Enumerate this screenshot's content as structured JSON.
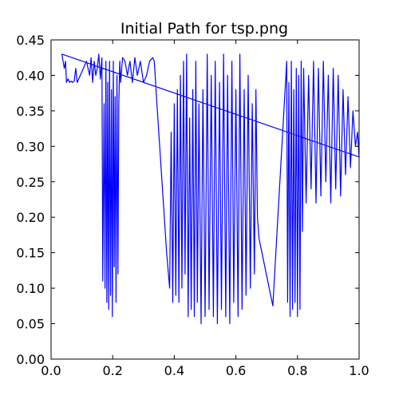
{
  "chart_data": {
    "type": "line",
    "title": "Initial Path for tsp.png",
    "xlabel": "",
    "ylabel": "",
    "xlim": [
      0.0,
      1.0
    ],
    "ylim": [
      0.0,
      0.45
    ],
    "grid": false,
    "legend": "none",
    "line_color": "#0000ff",
    "x_ticks": [
      {
        "value": 0.0,
        "label": "0.0"
      },
      {
        "value": 0.2,
        "label": "0.2"
      },
      {
        "value": 0.4,
        "label": "0.4"
      },
      {
        "value": 0.6,
        "label": "0.6"
      },
      {
        "value": 0.8,
        "label": "0.8"
      },
      {
        "value": 1.0,
        "label": "1.0"
      }
    ],
    "y_ticks": [
      {
        "value": 0.0,
        "label": "0.00"
      },
      {
        "value": 0.05,
        "label": "0.05"
      },
      {
        "value": 0.1,
        "label": "0.10"
      },
      {
        "value": 0.15,
        "label": "0.15"
      },
      {
        "value": 0.2,
        "label": "0.20"
      },
      {
        "value": 0.25,
        "label": "0.25"
      },
      {
        "value": 0.3,
        "label": "0.30"
      },
      {
        "value": 0.35,
        "label": "0.35"
      },
      {
        "value": 0.4,
        "label": "0.40"
      },
      {
        "value": 0.45,
        "label": "0.45"
      }
    ],
    "series": [
      {
        "x": [
          0.035,
          0.043,
          0.047,
          0.05,
          0.055,
          0.06,
          0.065,
          0.07,
          0.075,
          0.08,
          0.085,
          0.09,
          0.095,
          0.1,
          0.105,
          0.11,
          0.115,
          0.12,
          0.125,
          0.13,
          0.135,
          0.14,
          0.145,
          0.15,
          0.155,
          0.16,
          0.165,
          0.168,
          0.172,
          0.175,
          0.178,
          0.181,
          0.184,
          0.187,
          0.19,
          0.193,
          0.196,
          0.199,
          0.202,
          0.205,
          0.208,
          0.211,
          0.214,
          0.217,
          0.22,
          0.223,
          0.226,
          0.232,
          0.24,
          0.248,
          0.256,
          0.264,
          0.272,
          0.28,
          0.29,
          0.3,
          0.31,
          0.32,
          0.33,
          0.335,
          0.345,
          0.36,
          0.375,
          0.385,
          0.39,
          0.395,
          0.4,
          0.405,
          0.41,
          0.415,
          0.42,
          0.425,
          0.43,
          0.435,
          0.44,
          0.445,
          0.45,
          0.455,
          0.46,
          0.465,
          0.47,
          0.475,
          0.48,
          0.487,
          0.493,
          0.5,
          0.507,
          0.513,
          0.52,
          0.527,
          0.533,
          0.54,
          0.547,
          0.553,
          0.56,
          0.567,
          0.573,
          0.58,
          0.587,
          0.593,
          0.6,
          0.607,
          0.613,
          0.62,
          0.627,
          0.633,
          0.64,
          0.647,
          0.653,
          0.66,
          0.665,
          0.67,
          0.675,
          0.72,
          0.765,
          0.768,
          0.772,
          0.776,
          0.78,
          0.784,
          0.788,
          0.792,
          0.796,
          0.8,
          0.804,
          0.808,
          0.812,
          0.816,
          0.82,
          0.828,
          0.836,
          0.844,
          0.852,
          0.86,
          0.868,
          0.876,
          0.884,
          0.892,
          0.9,
          0.908,
          0.916,
          0.924,
          0.932,
          0.94,
          0.948,
          0.956,
          0.964,
          0.972,
          0.98,
          0.988,
          0.995,
          1.0,
          0.035
        ],
        "y": [
          0.43,
          0.41,
          0.42,
          0.39,
          0.395,
          0.39,
          0.392,
          0.39,
          0.392,
          0.41,
          0.39,
          0.395,
          0.4,
          0.405,
          0.41,
          0.415,
          0.42,
          0.41,
          0.4,
          0.425,
          0.39,
          0.42,
          0.4,
          0.41,
          0.43,
          0.395,
          0.425,
          0.11,
          0.36,
          0.1,
          0.42,
          0.08,
          0.39,
          0.07,
          0.42,
          0.09,
          0.38,
          0.06,
          0.42,
          0.13,
          0.37,
          0.08,
          0.4,
          0.12,
          0.36,
          0.42,
          0.39,
          0.425,
          0.42,
          0.4,
          0.42,
          0.39,
          0.425,
          0.4,
          0.42,
          0.39,
          0.4,
          0.42,
          0.425,
          0.42,
          0.35,
          0.25,
          0.15,
          0.1,
          0.32,
          0.08,
          0.36,
          0.09,
          0.38,
          0.08,
          0.4,
          0.1,
          0.42,
          0.12,
          0.43,
          0.06,
          0.34,
          0.07,
          0.38,
          0.06,
          0.42,
          0.08,
          0.36,
          0.05,
          0.38,
          0.06,
          0.43,
          0.07,
          0.4,
          0.06,
          0.42,
          0.05,
          0.39,
          0.07,
          0.43,
          0.06,
          0.4,
          0.05,
          0.42,
          0.08,
          0.38,
          0.06,
          0.43,
          0.07,
          0.38,
          0.09,
          0.4,
          0.1,
          0.36,
          0.12,
          0.38,
          0.2,
          0.17,
          0.075,
          0.42,
          0.08,
          0.39,
          0.06,
          0.42,
          0.07,
          0.38,
          0.08,
          0.41,
          0.06,
          0.4,
          0.07,
          0.42,
          0.18,
          0.41,
          0.22,
          0.4,
          0.24,
          0.42,
          0.22,
          0.41,
          0.23,
          0.42,
          0.25,
          0.4,
          0.22,
          0.41,
          0.24,
          0.4,
          0.23,
          0.38,
          0.26,
          0.37,
          0.27,
          0.35,
          0.3,
          0.32,
          0.285,
          0.43
        ]
      }
    ]
  }
}
